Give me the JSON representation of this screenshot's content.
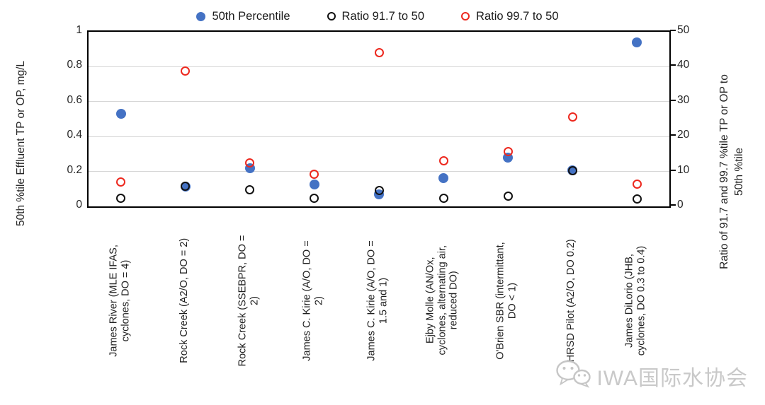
{
  "chart_data": {
    "type": "scatter",
    "title": "",
    "categories": [
      [
        "James River (MLE IFAS,",
        "cyclones, DO = 4)"
      ],
      [
        "Rock Creek (A2/O, DO = 2)"
      ],
      [
        "Rock Creek (SSEBPR, DO =",
        "2)"
      ],
      [
        "James C. Kirie (A/O, DO =",
        "2)"
      ],
      [
        "James C. Kirie (A/O, DO =",
        "1.5 and 1)"
      ],
      [
        "Ejby Molle (AN/Ox,",
        "cyclones, alternating air,",
        "reduced DO)"
      ],
      [
        "O'Brien SBR (intermittant,",
        "DO < 1)"
      ],
      [
        "HRSD Pilot (A2/O, DO 0.2)"
      ],
      [
        "James DiLorio (JHB,",
        "cyclones, DO 0.3 to 0.4)"
      ]
    ],
    "left_axis": {
      "label": "50th %tile Effluent TP or OP, mg/L",
      "min": 0,
      "max": 1,
      "ticks": [
        "1",
        "0.8",
        "0.6",
        "0.4",
        "0.2",
        "0"
      ]
    },
    "right_axis": {
      "label_line1": "Ratio of 91.7 and 99.7 %tile TP or OP to",
      "label_line2": "50th %tile",
      "min": 0,
      "max": 50,
      "ticks": [
        "50",
        "40",
        "30",
        "20",
        "10",
        "0"
      ]
    },
    "gridline_values": [
      0.2,
      0.4,
      0.6,
      0.8
    ],
    "grid_on": true,
    "legend_position": "top-center",
    "series": [
      {
        "name": "50th Percentile",
        "axis": "left",
        "marker": "filled",
        "color": "#4472C4",
        "values": [
          0.53,
          0.115,
          0.22,
          0.125,
          0.07,
          0.16,
          0.28,
          0.205,
          0.94
        ]
      },
      {
        "name": "Ratio 91.7 to 50",
        "axis": "right",
        "marker": "open",
        "color": "#111111",
        "values": [
          2.4,
          5.7,
          4.7,
          2.4,
          4.5,
          2.3,
          3.0,
          10.2,
          2.2
        ]
      },
      {
        "name": "Ratio 99.7 to 50",
        "axis": "right",
        "marker": "open",
        "color": "#ED281E",
        "values": [
          7.0,
          38.8,
          12.5,
          9.2,
          44.0,
          13.0,
          15.6,
          25.6,
          6.3
        ]
      }
    ]
  },
  "watermark": {
    "text": "IWA国际水协会",
    "icon": "wechat-icon"
  }
}
